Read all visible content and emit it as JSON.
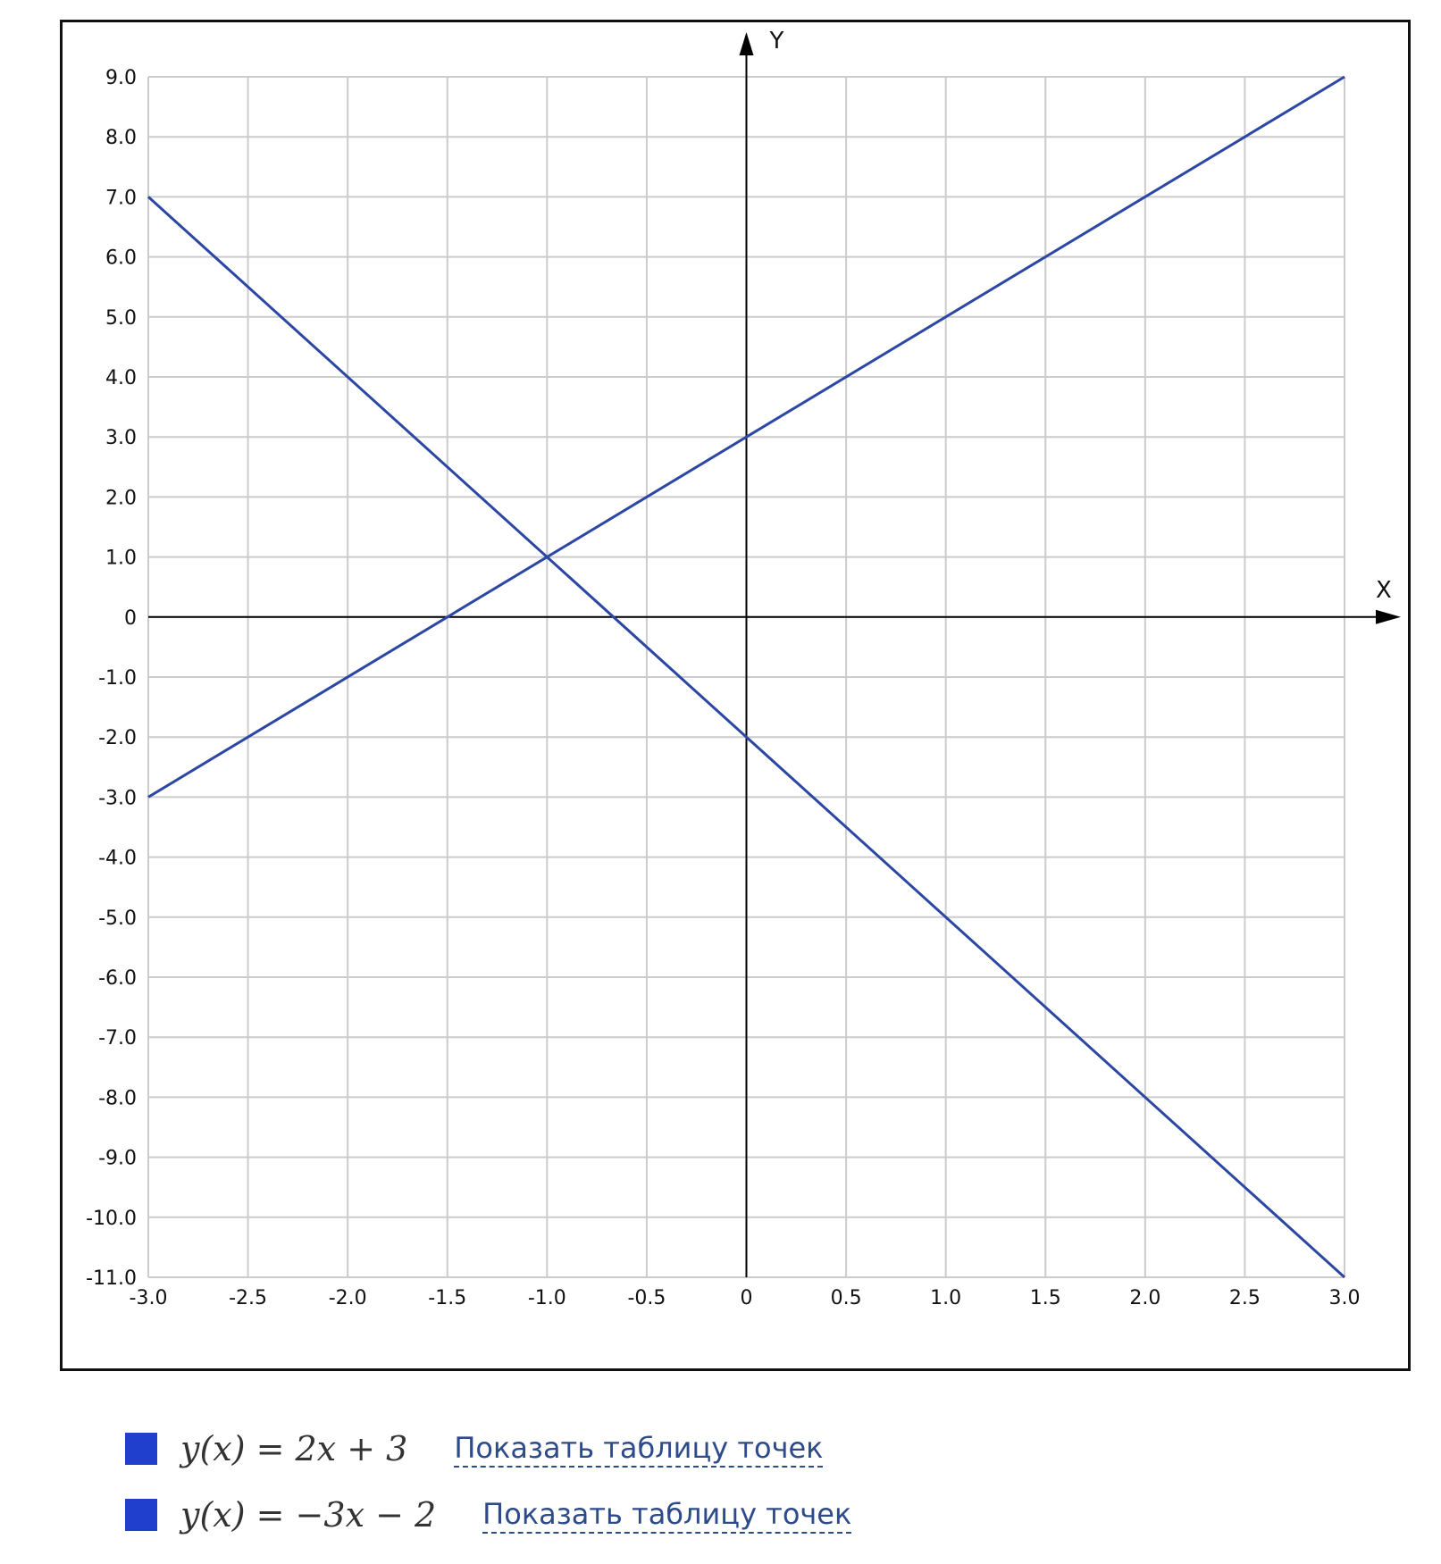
{
  "chart_data": {
    "type": "line",
    "title": "",
    "xlabel": "X",
    "ylabel": "Y",
    "xlim": [
      -3.0,
      3.0
    ],
    "ylim": [
      -11.0,
      9.0
    ],
    "x_ticks": [
      "-3.0",
      "-2.5",
      "-2.0",
      "-1.5",
      "-1.0",
      "-0.5",
      "0",
      "0.5",
      "1.0",
      "1.5",
      "2.0",
      "2.5",
      "3.0"
    ],
    "y_ticks": [
      "9.0",
      "8.0",
      "7.0",
      "6.0",
      "5.0",
      "4.0",
      "3.0",
      "2.0",
      "1.0",
      "0",
      "-1.0",
      "-2.0",
      "-3.0",
      "-4.0",
      "-5.0",
      "-6.0",
      "-7.0",
      "-8.0",
      "-9.0",
      "-10.0",
      "-11.0"
    ],
    "x_tick_values": [
      -3.0,
      -2.5,
      -2.0,
      -1.5,
      -1.0,
      -0.5,
      0,
      0.5,
      1.0,
      1.5,
      2.0,
      2.5,
      3.0
    ],
    "y_tick_values": [
      9,
      8,
      7,
      6,
      5,
      4,
      3,
      2,
      1,
      0,
      -1,
      -2,
      -3,
      -4,
      -5,
      -6,
      -7,
      -8,
      -9,
      -10,
      -11
    ],
    "grid": true,
    "series": [
      {
        "x": [
          -3.0,
          3.0
        ],
        "y": [
          -3.0,
          9.0
        ],
        "color": "#2b47a3"
      },
      {
        "x": [
          -3.0,
          3.0
        ],
        "y": [
          7.0,
          -11.0
        ],
        "color": "#2b47a3"
      }
    ]
  },
  "legend": [
    {
      "formula": "y(x) = 2x + 3",
      "link": "Показать таблицу точек",
      "color": "#1f3fcc"
    },
    {
      "formula": "y(x) = −3x − 2",
      "link": "Показать таблицу точек",
      "color": "#1f3fcc"
    }
  ]
}
